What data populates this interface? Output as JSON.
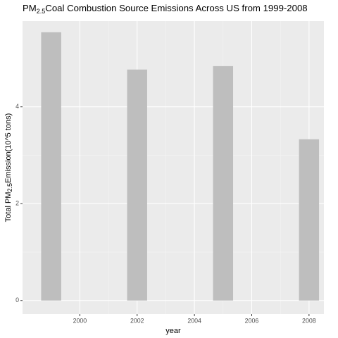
{
  "chart_data": {
    "type": "bar",
    "title": {
      "prefix": "PM",
      "subscript": "2.5",
      "text": "Coal Combustion Source Emissions Across US from 1999-2008"
    },
    "x_label": "year",
    "y_label": {
      "prefix": "Total PM",
      "subscript": "2.5",
      "text": "Emission(10^5 tons)"
    },
    "x": [
      1999,
      2002,
      2005,
      2008
    ],
    "values": [
      5.54,
      4.77,
      4.84,
      3.33
    ],
    "color": "#bebebe",
    "xlim": [
      1998.0,
      2008.52
    ],
    "xticks": [
      2000,
      2002,
      2004,
      2006,
      2008
    ],
    "ylim": [
      -0.28,
      5.77
    ],
    "yticks": [
      0,
      2,
      4
    ],
    "grid": true
  }
}
